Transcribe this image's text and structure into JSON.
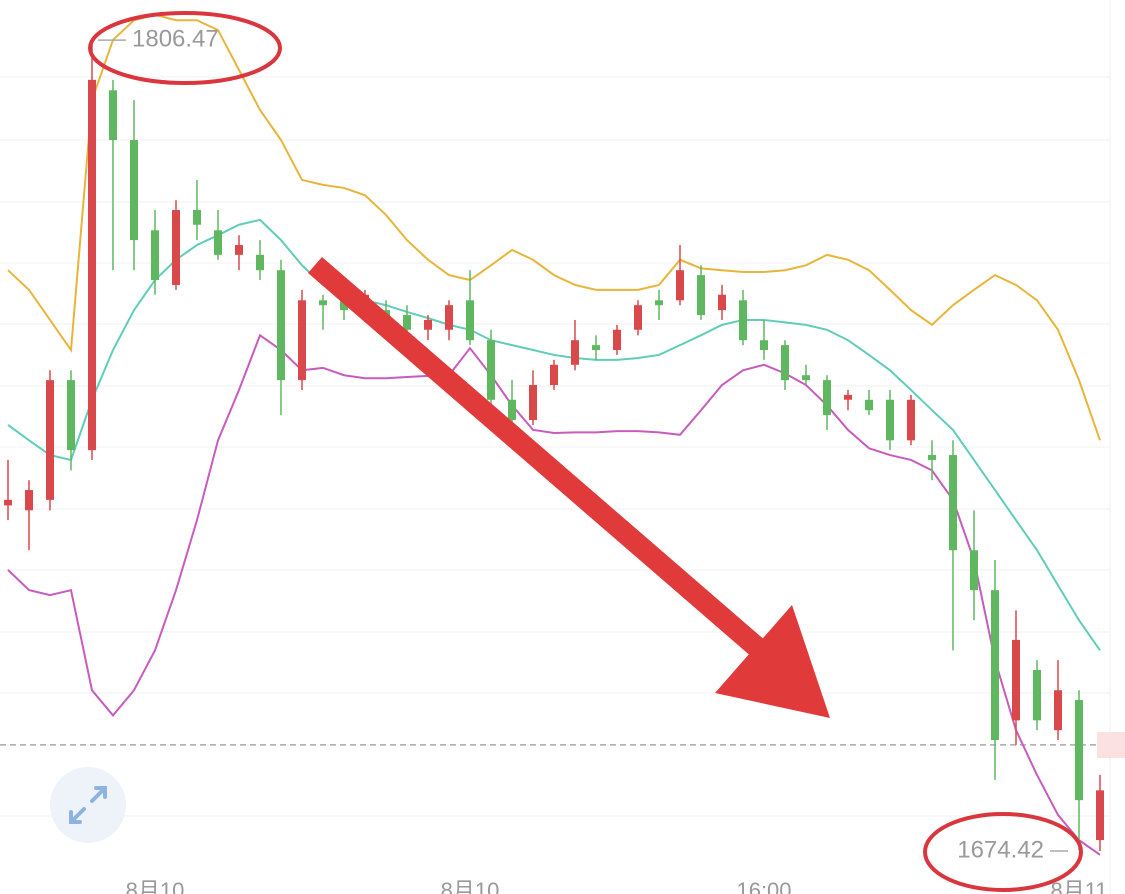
{
  "chart_data": {
    "type": "candlestick",
    "categories": [
      null,
      null,
      null,
      null,
      null,
      null,
      null,
      "8月10",
      null,
      null,
      null,
      null,
      null,
      null,
      null,
      null,
      null,
      null,
      null,
      null,
      null,
      null,
      "8月10",
      null,
      null,
      null,
      null,
      null,
      null,
      null,
      null,
      null,
      null,
      null,
      null,
      null,
      "16:00",
      null,
      null,
      null,
      null,
      null,
      null,
      null,
      null,
      null,
      null,
      null,
      null,
      null,
      null,
      "8月11",
      null
    ],
    "open": [
      1730.7,
      1729.9,
      1731.6,
      1751.1,
      1739.7,
      1798.3,
      1790.2,
      1775.5,
      1766.6,
      1778.8,
      1775.5,
      1771.5,
      1771.5,
      1769.0,
      1751.1,
      1764.1,
      1764.1,
      1762.5,
      1762.5,
      1761.7,
      1759.3,
      1759.3,
      1764.1,
      1757.6,
      1747.9,
      1744.6,
      1750.3,
      1753.6,
      1756.8,
      1756.0,
      1759.3,
      1764.1,
      1764.1,
      1768.2,
      1762.5,
      1764.1,
      1757.6,
      1756.8,
      1751.9,
      1751.1,
      1747.9,
      1747.9,
      1747.9,
      1741.3,
      1738.9,
      1738.9,
      1723.4,
      1716.9,
      1695.7,
      1703.9,
      1694.1,
      1699.0,
      1676.2
    ],
    "high": [
      1738.1,
      1734.8,
      1752.7,
      1752.7,
      1806.47,
      1800.0,
      1796.7,
      1778.8,
      1780.4,
      1783.7,
      1778.8,
      1774.7,
      1773.9,
      1770.7,
      1765.8,
      1765.0,
      1765.8,
      1765.8,
      1764.1,
      1763.3,
      1761.7,
      1764.1,
      1769.0,
      1759.3,
      1751.1,
      1752.7,
      1754.4,
      1760.9,
      1758.4,
      1760.1,
      1764.1,
      1765.8,
      1773.1,
      1769.8,
      1766.6,
      1765.8,
      1760.9,
      1757.6,
      1753.6,
      1751.9,
      1749.5,
      1749.5,
      1749.5,
      1748.7,
      1741.3,
      1741.3,
      1729.9,
      1721.8,
      1713.6,
      1705.5,
      1705.5,
      1700.6,
      1686.8
    ],
    "low": [
      1728.3,
      1723.4,
      1729.9,
      1736.4,
      1738.1,
      1769.0,
      1769.0,
      1765.0,
      1765.8,
      1773.9,
      1770.7,
      1769.0,
      1767.4,
      1745.4,
      1749.5,
      1759.3,
      1760.9,
      1760.9,
      1759.3,
      1758.4,
      1757.6,
      1757.6,
      1756.8,
      1746.2,
      1743.0,
      1743.8,
      1749.5,
      1752.7,
      1754.4,
      1755.2,
      1758.4,
      1760.9,
      1763.3,
      1760.9,
      1760.9,
      1756.8,
      1754.4,
      1749.5,
      1750.3,
      1743.0,
      1746.2,
      1745.4,
      1739.7,
      1740.5,
      1734.8,
      1707.1,
      1712.0,
      1686.0,
      1691.7,
      1694.1,
      1692.5,
      1674.6,
      1674.42
    ],
    "close": [
      1731.6,
      1733.2,
      1751.1,
      1739.7,
      1800.0,
      1790.2,
      1773.9,
      1767.4,
      1778.8,
      1776.4,
      1771.5,
      1773.1,
      1769.0,
      1751.1,
      1764.1,
      1763.3,
      1762.5,
      1765.0,
      1760.9,
      1759.3,
      1760.9,
      1763.3,
      1757.6,
      1747.9,
      1744.6,
      1750.3,
      1753.6,
      1757.6,
      1756.0,
      1759.3,
      1763.3,
      1763.3,
      1769.0,
      1761.7,
      1765.0,
      1757.6,
      1756.0,
      1751.1,
      1751.1,
      1745.4,
      1748.7,
      1746.2,
      1741.3,
      1747.9,
      1738.1,
      1723.4,
      1716.9,
      1692.5,
      1708.8,
      1695.7,
      1700.6,
      1682.7,
      1684.3
    ],
    "up_color": "#d9494c",
    "down_color": "#5fb760",
    "bands": [
      {
        "color": "#e8b53a",
        "values": [
          1769.0,
          1765.8,
          1760.9,
          1756.0,
          1796.7,
          1806.5,
          1809.7,
          1810.6,
          1809.7,
          1809.7,
          1808.1,
          1801.6,
          1795.1,
          1790.2,
          1783.7,
          1782.9,
          1782.4,
          1781.2,
          1778.0,
          1773.9,
          1770.7,
          1768.2,
          1767.4,
          1769.8,
          1772.3,
          1770.7,
          1768.2,
          1766.6,
          1765.8,
          1765.8,
          1765.8,
          1766.6,
          1770.7,
          1769.3,
          1769.0,
          1768.7,
          1768.7,
          1769.0,
          1769.8,
          1771.5,
          1770.7,
          1769.0,
          1765.8,
          1762.5,
          1760.1,
          1763.3,
          1765.8,
          1768.2,
          1766.6,
          1764.1,
          1759.3,
          1751.1,
          1741.3
        ]
      },
      {
        "color": "#5fcdb8",
        "values": [
          1743.8,
          1741.3,
          1738.9,
          1738.1,
          1747.9,
          1756.0,
          1762.5,
          1767.4,
          1770.7,
          1773.1,
          1774.7,
          1776.4,
          1777.2,
          1773.9,
          1769.8,
          1766.6,
          1765.0,
          1764.1,
          1763.3,
          1762.2,
          1761.2,
          1760.1,
          1759.3,
          1757.6,
          1756.8,
          1756.0,
          1755.2,
          1754.7,
          1754.4,
          1754.4,
          1754.7,
          1755.2,
          1756.8,
          1758.4,
          1760.1,
          1760.9,
          1760.9,
          1760.5,
          1760.1,
          1759.3,
          1757.6,
          1755.2,
          1752.7,
          1749.5,
          1746.2,
          1743.0,
          1738.1,
          1733.2,
          1728.3,
          1723.4,
          1717.7,
          1712.0,
          1707.1
        ]
      },
      {
        "color": "#c75bc0",
        "values": [
          1720.2,
          1716.9,
          1716.1,
          1716.9,
          1700.6,
          1696.5,
          1700.6,
          1707.1,
          1716.9,
          1728.3,
          1741.3,
          1749.5,
          1758.4,
          1756.0,
          1752.7,
          1753.1,
          1751.9,
          1751.4,
          1751.4,
          1751.6,
          1751.8,
          1751.9,
          1756.3,
          1751.9,
          1747.0,
          1743.0,
          1742.5,
          1742.6,
          1742.6,
          1742.8,
          1742.8,
          1742.6,
          1742.2,
          1746.2,
          1750.3,
          1752.7,
          1753.6,
          1752.2,
          1750.3,
          1747.0,
          1743.0,
          1740.0,
          1738.9,
          1738.1,
          1736.4,
          1731.6,
          1721.8,
          1705.5,
          1694.1,
          1686.8,
          1680.3,
          1676.2,
          1673.8
        ]
      }
    ],
    "price_line": 1691.7,
    "max_label": 1806.47,
    "min_label": 1674.42,
    "ylim": [
      1669.7,
      1813.0
    ]
  }
}
